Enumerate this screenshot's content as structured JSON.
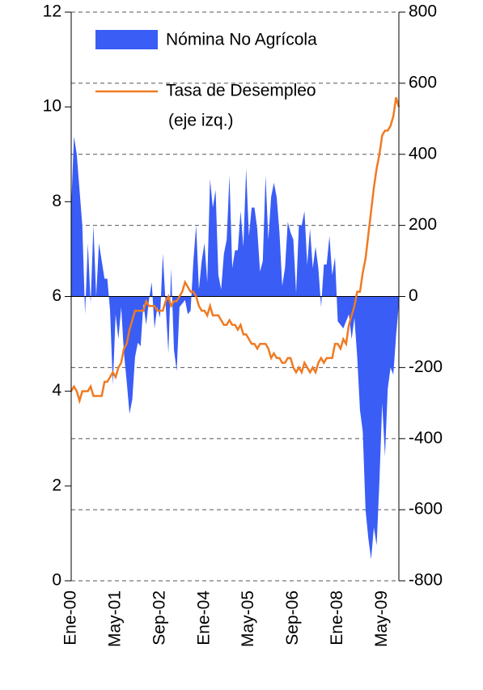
{
  "chart_data": {
    "type": "area_line",
    "categories": [
      "Ene-00",
      null,
      null,
      null,
      null,
      null,
      null,
      null,
      null,
      null,
      null,
      null,
      null,
      null,
      null,
      null,
      "May-01",
      null,
      null,
      null,
      null,
      null,
      null,
      null,
      null,
      null,
      null,
      null,
      null,
      null,
      null,
      null,
      "Sep-02",
      null,
      null,
      null,
      null,
      null,
      null,
      null,
      null,
      null,
      null,
      null,
      null,
      null,
      null,
      null,
      "Ene-04",
      null,
      null,
      null,
      null,
      null,
      null,
      null,
      null,
      null,
      null,
      null,
      null,
      null,
      null,
      null,
      "May-05",
      null,
      null,
      null,
      null,
      null,
      null,
      null,
      null,
      null,
      null,
      null,
      null,
      null,
      null,
      null,
      "Sep-06",
      null,
      null,
      null,
      null,
      null,
      null,
      null,
      null,
      null,
      null,
      null,
      null,
      null,
      null,
      null,
      "Ene-08",
      null,
      null,
      null,
      null,
      null,
      null,
      null,
      null,
      null,
      null,
      null,
      null,
      null,
      null,
      null,
      "May-09",
      null,
      null,
      null,
      null,
      null,
      null
    ],
    "series": [
      {
        "name": "Nómina No Agrícola",
        "type": "area",
        "axis": "y2",
        "color": "#3a5df5",
        "values": [
          250,
          450,
          400,
          300,
          200,
          -50,
          150,
          -20,
          200,
          0,
          150,
          100,
          50,
          50,
          -40,
          -250,
          -50,
          -120,
          -30,
          -160,
          -240,
          -330,
          -290,
          -170,
          -130,
          -140,
          -20,
          -80,
          -10,
          40,
          -90,
          -30,
          -60,
          120,
          -20,
          -160,
          80,
          -150,
          -210,
          -30,
          -20,
          -10,
          -50,
          -40,
          100,
          200,
          20,
          100,
          150,
          40,
          330,
          250,
          300,
          60,
          20,
          120,
          160,
          340,
          80,
          130,
          130,
          240,
          140,
          360,
          170,
          250,
          250,
          190,
          70,
          100,
          340,
          160,
          280,
          320,
          280,
          180,
          30,
          80,
          210,
          180,
          160,
          10,
          200,
          200,
          240,
          90,
          190,
          80,
          140,
          80,
          -30,
          90,
          90,
          170,
          60,
          110,
          -70,
          -80,
          -90,
          -70,
          -50,
          -120,
          -60,
          -170,
          -320,
          -380,
          -600,
          -680,
          -740,
          -650,
          -700,
          -520,
          -300,
          -450,
          -260,
          -200,
          -220,
          -110,
          -20
        ]
      },
      {
        "name": "Tasa de Desempleo",
        "type": "line",
        "axis": "y",
        "color": "#f07a22",
        "values": [
          4.0,
          4.1,
          4.0,
          3.8,
          4.0,
          4.0,
          4.0,
          4.1,
          3.9,
          3.9,
          3.9,
          3.9,
          4.2,
          4.2,
          4.3,
          4.4,
          4.3,
          4.5,
          4.6,
          4.9,
          5.0,
          5.3,
          5.5,
          5.7,
          5.7,
          5.7,
          5.7,
          5.9,
          5.8,
          5.8,
          5.8,
          5.7,
          5.7,
          5.7,
          5.9,
          6.0,
          5.8,
          5.9,
          5.9,
          6.0,
          6.1,
          6.3,
          6.2,
          6.1,
          6.1,
          6.0,
          5.8,
          5.7,
          5.7,
          5.6,
          5.8,
          5.6,
          5.6,
          5.6,
          5.5,
          5.4,
          5.4,
          5.5,
          5.4,
          5.4,
          5.3,
          5.4,
          5.2,
          5.2,
          5.1,
          5.0,
          5.0,
          4.9,
          5.0,
          5.0,
          5.0,
          4.9,
          4.7,
          4.8,
          4.7,
          4.7,
          4.6,
          4.6,
          4.7,
          4.7,
          4.5,
          4.4,
          4.5,
          4.4,
          4.6,
          4.5,
          4.4,
          4.5,
          4.4,
          4.6,
          4.7,
          4.6,
          4.7,
          4.7,
          4.7,
          5.0,
          5.0,
          4.9,
          5.1,
          5.0,
          5.4,
          5.6,
          5.8,
          6.1,
          6.1,
          6.5,
          6.8,
          7.3,
          7.8,
          8.3,
          8.7,
          9.0,
          9.4,
          9.5,
          9.5,
          9.6,
          9.8,
          10.2,
          10.0
        ]
      }
    ],
    "legend_note": "(eje izq.)",
    "ylim": [
      0,
      12
    ],
    "yticks": [
      0,
      2,
      4,
      6,
      8,
      10,
      12
    ],
    "y2lim": [
      -800,
      800
    ],
    "y2ticks": [
      -800,
      -600,
      -400,
      -200,
      0,
      200,
      400,
      600,
      800
    ],
    "grid": true
  }
}
